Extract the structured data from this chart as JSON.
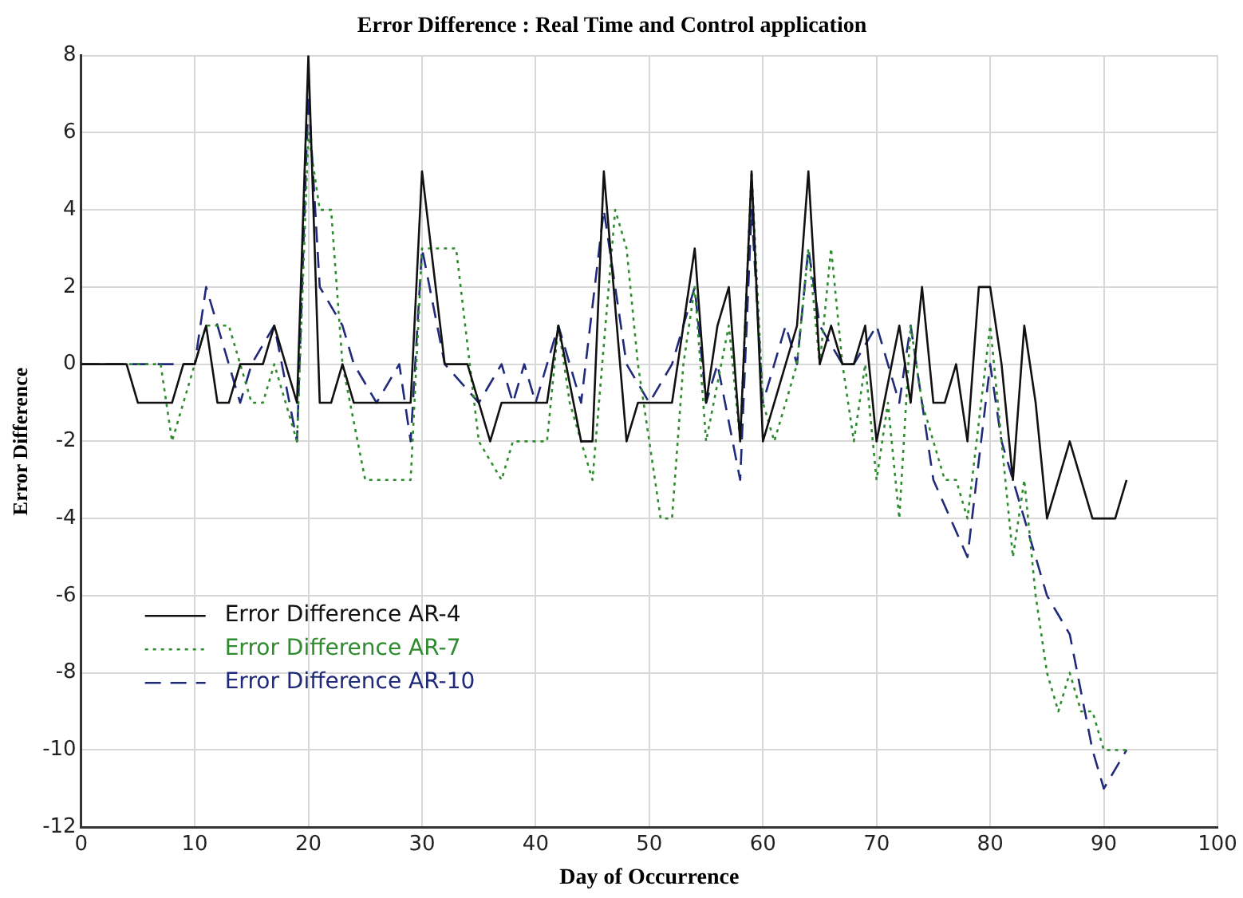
{
  "chart_data": {
    "type": "line",
    "title": "Error Difference : Real Time and Control application",
    "xlabel": "Day of Occurrence",
    "ylabel": "Error Difference",
    "series": [
      {
        "name": "Error Difference AR-4",
        "color": "#111111",
        "line_style": "solid",
        "x": [
          0,
          4,
          5,
          8,
          9,
          10,
          11,
          12,
          13,
          14,
          16,
          17,
          19,
          20,
          21,
          22,
          23,
          24,
          29,
          30,
          32,
          34,
          36,
          37,
          41,
          42,
          44,
          45,
          46,
          48,
          49,
          52,
          54,
          55,
          56,
          57,
          58,
          59,
          60,
          62,
          63,
          64,
          65,
          66,
          67,
          68,
          69,
          70,
          72,
          73,
          74,
          75,
          76,
          77,
          78,
          79,
          80,
          81,
          82,
          83,
          84,
          85,
          87,
          89,
          91,
          92
        ],
        "values": [
          0,
          0,
          -1,
          -1,
          0,
          0,
          1,
          -1,
          -1,
          0,
          0,
          1,
          -1,
          8,
          -1,
          -1,
          0,
          -1,
          -1,
          5,
          0,
          0,
          -2,
          -1,
          -1,
          1,
          -2,
          -2,
          5,
          -2,
          -1,
          -1,
          3,
          -1,
          1,
          2,
          -2,
          5,
          -2,
          0,
          1,
          5,
          0,
          1,
          0,
          0,
          1,
          -2,
          1,
          -1,
          2,
          -1,
          -1,
          0,
          -2,
          2,
          2,
          0,
          -3,
          1,
          -1,
          -4,
          -2,
          -4,
          -4,
          -3
        ]
      },
      {
        "name": "Error Difference AR-7",
        "color": "#2e8b2e",
        "line_style": "dotted",
        "x": [
          0,
          7,
          8,
          10,
          11,
          13,
          15,
          16,
          17,
          19,
          20,
          21,
          22,
          23,
          25,
          29,
          30,
          33,
          35,
          37,
          38,
          41,
          42,
          43,
          45,
          47,
          48,
          49,
          51,
          52,
          53,
          54,
          55,
          57,
          58,
          59,
          60,
          61,
          63,
          64,
          65,
          66,
          67,
          68,
          69,
          70,
          71,
          72,
          73,
          74,
          76,
          77,
          78,
          80,
          82,
          83,
          84,
          85,
          86,
          87,
          88,
          89,
          90,
          92
        ],
        "values": [
          0,
          0,
          -2,
          0,
          1,
          1,
          -1,
          -1,
          0,
          -2,
          6,
          4,
          4,
          0,
          -3,
          -3,
          3,
          3,
          -2,
          -3,
          -2,
          -2,
          1,
          -1,
          -3,
          4,
          3,
          0,
          -4,
          -4,
          0,
          2,
          -2,
          1,
          -2,
          5,
          -1,
          -2,
          0,
          3,
          0,
          3,
          0,
          -2,
          0,
          -3,
          -1,
          -4,
          1,
          -1,
          -3,
          -3,
          -4,
          1,
          -5,
          -3,
          -6,
          -8,
          -9,
          -8,
          -9,
          -9,
          -10,
          -10
        ]
      },
      {
        "name": "Error Difference AR-10",
        "color": "#1f2a7a",
        "line_style": "dashed",
        "x": [
          0,
          8,
          10,
          11,
          13,
          14,
          15,
          17,
          19,
          20,
          21,
          23,
          24,
          26,
          28,
          29,
          30,
          32,
          35,
          37,
          38,
          39,
          40,
          41,
          42,
          44,
          46,
          48,
          50,
          52,
          54,
          55,
          56,
          58,
          59,
          60,
          62,
          63,
          64,
          65,
          67,
          68,
          70,
          72,
          73,
          74,
          75,
          78,
          80,
          81,
          83,
          85,
          87,
          89,
          90,
          92
        ],
        "values": [
          0,
          0,
          0,
          2,
          0,
          -1,
          0,
          1,
          -2,
          7,
          2,
          1,
          0,
          -1,
          0,
          -2,
          3,
          0,
          -1,
          0,
          -1,
          0,
          -1,
          0,
          1,
          -1,
          4,
          0,
          -1,
          0,
          2,
          -1,
          0,
          -3,
          4,
          -1,
          1,
          0,
          3,
          1,
          0,
          0,
          1,
          -1,
          1,
          -1,
          -3,
          -5,
          0,
          -2,
          -4,
          -6,
          -7,
          -10,
          -11,
          -10
        ]
      }
    ],
    "xlim": [
      0,
      100
    ],
    "xticks": [
      0,
      10,
      20,
      30,
      40,
      50,
      60,
      70,
      80,
      90,
      100
    ],
    "ylim": [
      -12,
      8
    ],
    "yticks": [
      -12,
      -10,
      -8,
      -6,
      -4,
      -2,
      0,
      2,
      4,
      6,
      8
    ],
    "grid": true,
    "legend": "bottom left",
    "marker": "none"
  }
}
